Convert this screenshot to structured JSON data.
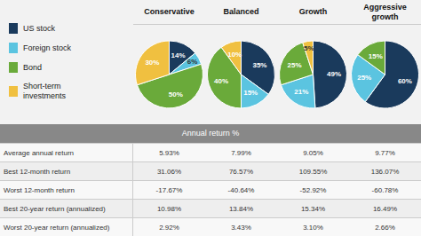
{
  "chart_data": [
    {
      "type": "pie",
      "title": "Conservative",
      "categories": [
        "US stock",
        "Foreign stock",
        "Bond",
        "Short-term\ninvestments"
      ],
      "values": [
        14,
        6,
        50,
        30
      ],
      "value_labels": [
        "14%",
        "6%",
        "50%",
        "30%"
      ],
      "colors": [
        "#1a3a5c",
        "#5bc4e0",
        "#6aaa3a",
        "#f0c040"
      ],
      "data_labels": true,
      "legend": "left"
    },
    {
      "type": "pie",
      "title": "Balanced",
      "categories": [
        "US stock",
        "Foreign stock",
        "Bond",
        "Short-term\ninvestments"
      ],
      "values": [
        35,
        15,
        40,
        10
      ],
      "value_labels": [
        "35%",
        "15%",
        "40%",
        "10%"
      ],
      "colors": [
        "#1a3a5c",
        "#5bc4e0",
        "#6aaa3a",
        "#f0c040"
      ],
      "data_labels": true,
      "legend": "left"
    },
    {
      "type": "pie",
      "title": "Growth",
      "categories": [
        "US stock",
        "Foreign stock",
        "Bond",
        "Short-term\ninvestments"
      ],
      "values": [
        49,
        21,
        25,
        5
      ],
      "value_labels": [
        "49%",
        "21%",
        "25%",
        "5%"
      ],
      "colors": [
        "#1a3a5c",
        "#5bc4e0",
        "#6aaa3a",
        "#f0c040"
      ],
      "data_labels": true,
      "legend": "left"
    },
    {
      "type": "pie",
      "title": "Aggressive\ngrowth",
      "categories": [
        "US stock",
        "Foreign stock",
        "Bond"
      ],
      "values": [
        60,
        25,
        15
      ],
      "value_labels": [
        "60%",
        "25%",
        "15%"
      ],
      "colors": [
        "#1a3a5c",
        "#5bc4e0",
        "#6aaa3a"
      ],
      "data_labels": true,
      "legend": "left"
    },
    {
      "type": "table",
      "title": "Annual return %",
      "categories": [
        "Average annual return",
        "Best 12-month return",
        "Worst 12-month return",
        "Best 20-year return (annualized)",
        "Worst 20-year return (annualized)"
      ],
      "series": [
        {
          "name": "Conservative",
          "values": [
            5.93,
            31.06,
            -17.67,
            10.98,
            2.92
          ],
          "value_labels": [
            "5.93%",
            "31.06%",
            "-17.67%",
            "10.98%",
            "2.92%"
          ]
        },
        {
          "name": "Balanced",
          "values": [
            7.99,
            76.57,
            -40.64,
            13.84,
            3.43
          ],
          "value_labels": [
            "7.99%",
            "76.57%",
            "-40.64%",
            "13.84%",
            "3.43%"
          ]
        },
        {
          "name": "Growth",
          "values": [
            9.05,
            109.55,
            -52.92,
            15.34,
            3.1
          ],
          "value_labels": [
            "9.05%",
            "109.55%",
            "-52.92%",
            "15.34%",
            "3.10%"
          ]
        },
        {
          "name": "Aggressive\ngrowth",
          "values": [
            9.77,
            136.07,
            -60.78,
            16.49,
            2.66
          ],
          "value_labels": [
            "9.77%",
            "136.07%",
            "-60.78%",
            "16.49%",
            "2.66%"
          ]
        }
      ]
    }
  ]
}
